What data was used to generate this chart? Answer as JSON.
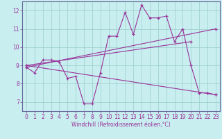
{
  "bg_color": "#c8eef0",
  "line_color": "#993399",
  "grid_color": "#99cccc",
  "spine_color": "#666699",
  "xlabel": "Windchill (Refroidissement éolien,°C)",
  "ylim": [
    6.5,
    12.5
  ],
  "xlim": [
    -0.5,
    23.5
  ],
  "yticks": [
    7,
    8,
    9,
    10,
    11,
    12
  ],
  "xticks": [
    0,
    1,
    2,
    3,
    4,
    5,
    6,
    7,
    8,
    9,
    10,
    11,
    12,
    13,
    14,
    15,
    16,
    17,
    18,
    19,
    20,
    21,
    22,
    23
  ],
  "series1": [
    8.9,
    8.6,
    9.3,
    9.3,
    9.2,
    8.3,
    8.4,
    6.9,
    6.9,
    8.6,
    10.6,
    10.6,
    11.9,
    10.7,
    12.3,
    11.6,
    11.6,
    11.7,
    10.3,
    11.0,
    9.0,
    7.5,
    7.5,
    7.4
  ],
  "series2_x": [
    0,
    23
  ],
  "series2_y": [
    8.9,
    11.0
  ],
  "series3_x": [
    0,
    20
  ],
  "series3_y": [
    9.0,
    10.3
  ],
  "series4_x": [
    0,
    23
  ],
  "series4_y": [
    9.0,
    7.4
  ],
  "tick_fontsize": 5.5,
  "xlabel_fontsize": 5.5,
  "marker_size": 3.0,
  "line_width": 0.8
}
